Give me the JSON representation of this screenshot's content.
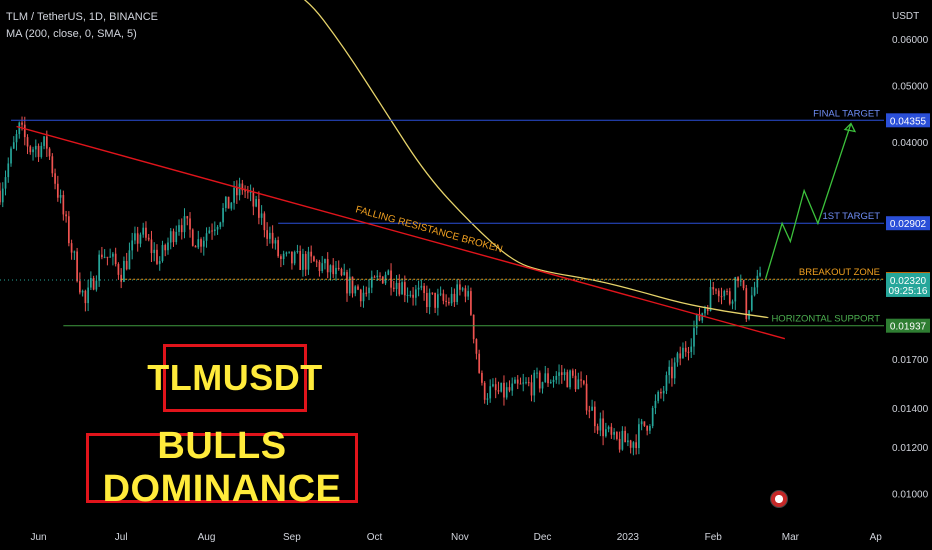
{
  "header": {
    "symbol_line": "TLM / TetherUS, 1D, BINANCE",
    "indicator_line": "MA (200, close, 0, SMA, 5)",
    "currency": "USDT"
  },
  "boxes": {
    "symbol": "TLMUSDT",
    "headline": "BULLS DOMINANCE"
  },
  "colors": {
    "background": "#000000",
    "up_candle": "#26a69a",
    "down_candle": "#ef5350",
    "moving_average": "#e6d36a",
    "resistance": "#e0141b",
    "target_lines": "#2a4fd8",
    "support": "#3f9a3f",
    "breakout": "#f0a020",
    "projection": "#3cc13c",
    "box_border": "#e0141b",
    "box_text": "#ffeb3b"
  },
  "chart_data": {
    "type": "candlestick",
    "title": "TLM / TetherUS, 1D, BINANCE",
    "ylabel": "USDT",
    "y_scale": "log",
    "ylim": [
      0.009,
      0.07
    ],
    "xlim": [
      "2022-05-18",
      "2023-04-04"
    ],
    "x_ticks": [
      {
        "date": "2022-06-01",
        "label": "Jun"
      },
      {
        "date": "2022-07-01",
        "label": "Jul"
      },
      {
        "date": "2022-08-01",
        "label": "Aug"
      },
      {
        "date": "2022-09-01",
        "label": "Sep"
      },
      {
        "date": "2022-10-01",
        "label": "Oct"
      },
      {
        "date": "2022-11-01",
        "label": "Nov"
      },
      {
        "date": "2022-12-01",
        "label": "Dec"
      },
      {
        "date": "2023-01-01",
        "label": "2023"
      },
      {
        "date": "2023-02-01",
        "label": "Feb"
      },
      {
        "date": "2023-03-01",
        "label": "Mar"
      },
      {
        "date": "2023-04-01",
        "label": "Ap"
      }
    ],
    "y_ticks": [
      {
        "value": 0.06,
        "label": "0.06000"
      },
      {
        "value": 0.05,
        "label": "0.05000"
      },
      {
        "value": 0.04,
        "label": "0.04000"
      },
      {
        "value": 0.017,
        "label": "0.01700"
      },
      {
        "value": 0.014,
        "label": "0.01400"
      },
      {
        "value": 0.012,
        "label": "0.01200"
      },
      {
        "value": 0.01,
        "label": "0.01000"
      }
    ],
    "price_anchors": [
      [
        "2022-05-18",
        0.033
      ],
      [
        "2022-05-25",
        0.042
      ],
      [
        "2022-05-29",
        0.039
      ],
      [
        "2022-06-04",
        0.0395
      ],
      [
        "2022-06-10",
        0.03
      ],
      [
        "2022-06-18",
        0.021
      ],
      [
        "2022-06-24",
        0.026
      ],
      [
        "2022-07-01",
        0.024
      ],
      [
        "2022-07-08",
        0.028
      ],
      [
        "2022-07-15",
        0.025
      ],
      [
        "2022-07-22",
        0.0295
      ],
      [
        "2022-07-29",
        0.027
      ],
      [
        "2022-08-06",
        0.03
      ],
      [
        "2022-08-14",
        0.0335
      ],
      [
        "2022-08-22",
        0.029
      ],
      [
        "2022-08-28",
        0.025
      ],
      [
        "2022-09-06",
        0.025
      ],
      [
        "2022-09-12",
        0.0245
      ],
      [
        "2022-09-20",
        0.023
      ],
      [
        "2022-09-28",
        0.022
      ],
      [
        "2022-10-05",
        0.024
      ],
      [
        "2022-10-12",
        0.0225
      ],
      [
        "2022-10-20",
        0.0215
      ],
      [
        "2022-10-27",
        0.0212
      ],
      [
        "2022-11-03",
        0.0225
      ],
      [
        "2022-11-05",
        0.0205
      ],
      [
        "2022-11-09",
        0.015
      ],
      [
        "2022-11-16",
        0.0148
      ],
      [
        "2022-11-24",
        0.0152
      ],
      [
        "2022-12-01",
        0.0156
      ],
      [
        "2022-12-08",
        0.016
      ],
      [
        "2022-12-14",
        0.0155
      ],
      [
        "2022-12-20",
        0.0135
      ],
      [
        "2022-12-27",
        0.0122
      ],
      [
        "2023-01-03",
        0.0123
      ],
      [
        "2023-01-09",
        0.0135
      ],
      [
        "2023-01-16",
        0.0158
      ],
      [
        "2023-01-22",
        0.0178
      ],
      [
        "2023-01-28",
        0.0205
      ],
      [
        "2023-02-02",
        0.023
      ],
      [
        "2023-02-07",
        0.0215
      ],
      [
        "2023-02-10",
        0.024
      ],
      [
        "2023-02-13",
        0.0205
      ],
      [
        "2023-02-16",
        0.0225
      ],
      [
        "2023-02-19",
        0.0232
      ]
    ],
    "moving_average_200": {
      "label": "MA (200, close, 0, SMA, 5)",
      "points": [
        [
          "2022-07-30",
          0.11
        ],
        [
          "2022-08-20",
          0.09
        ],
        [
          "2022-09-05",
          0.072
        ],
        [
          "2022-09-20",
          0.058
        ],
        [
          "2022-10-05",
          0.045
        ],
        [
          "2022-10-20",
          0.035
        ],
        [
          "2022-11-05",
          0.029
        ],
        [
          "2022-11-20",
          0.025
        ],
        [
          "2022-12-01",
          0.024
        ],
        [
          "2022-12-20",
          0.0232
        ],
        [
          "2023-01-05",
          0.0222
        ],
        [
          "2023-01-20",
          0.0212
        ],
        [
          "2023-02-05",
          0.0205
        ],
        [
          "2023-02-21",
          0.02
        ]
      ]
    },
    "levels": [
      {
        "name": "FINAL TARGET",
        "value": 0.04355,
        "from": "2022-05-22",
        "to": "2023-04-04",
        "color": "#2a4fd8",
        "label_color": "#6f8df5",
        "badge_color": "#2a4fd8"
      },
      {
        "name": "1ST TARGET",
        "value": 0.02902,
        "from": "2022-08-27",
        "to": "2023-04-04",
        "color": "#2a4fd8",
        "label_color": "#6f8df5",
        "badge_color": "#2a4fd8"
      },
      {
        "name": "BREAKOUT ZONE",
        "value": 0.02327,
        "from": "2022-07-01",
        "to": "2023-04-04",
        "color": "#f0a020",
        "label_color": "#f0a020",
        "badge_color": "#f57c00"
      },
      {
        "name": "HORIZONTAL SUPPORT",
        "value": 0.01937,
        "from": "2022-06-10",
        "to": "2023-04-04",
        "color": "#3f9a3f",
        "label_color": "#4caf50",
        "badge_color": "#2e7d32"
      }
    ],
    "current_price": {
      "value": 0.0232,
      "label": "0.02320",
      "countdown": "09:25:16",
      "badge_color": "#26a69a"
    },
    "resistance_line": {
      "label": "FALLING RESISTANCE BROKEN",
      "start": [
        "2022-05-24",
        0.0425
      ],
      "end": [
        "2023-02-27",
        0.0184
      ]
    },
    "projection_path": [
      [
        "2023-02-20",
        0.0233
      ],
      [
        "2023-02-26",
        0.029
      ],
      [
        "2023-03-01",
        0.027
      ],
      [
        "2023-03-06",
        0.033
      ],
      [
        "2023-03-11",
        0.029
      ],
      [
        "2023-03-23",
        0.043
      ]
    ]
  }
}
